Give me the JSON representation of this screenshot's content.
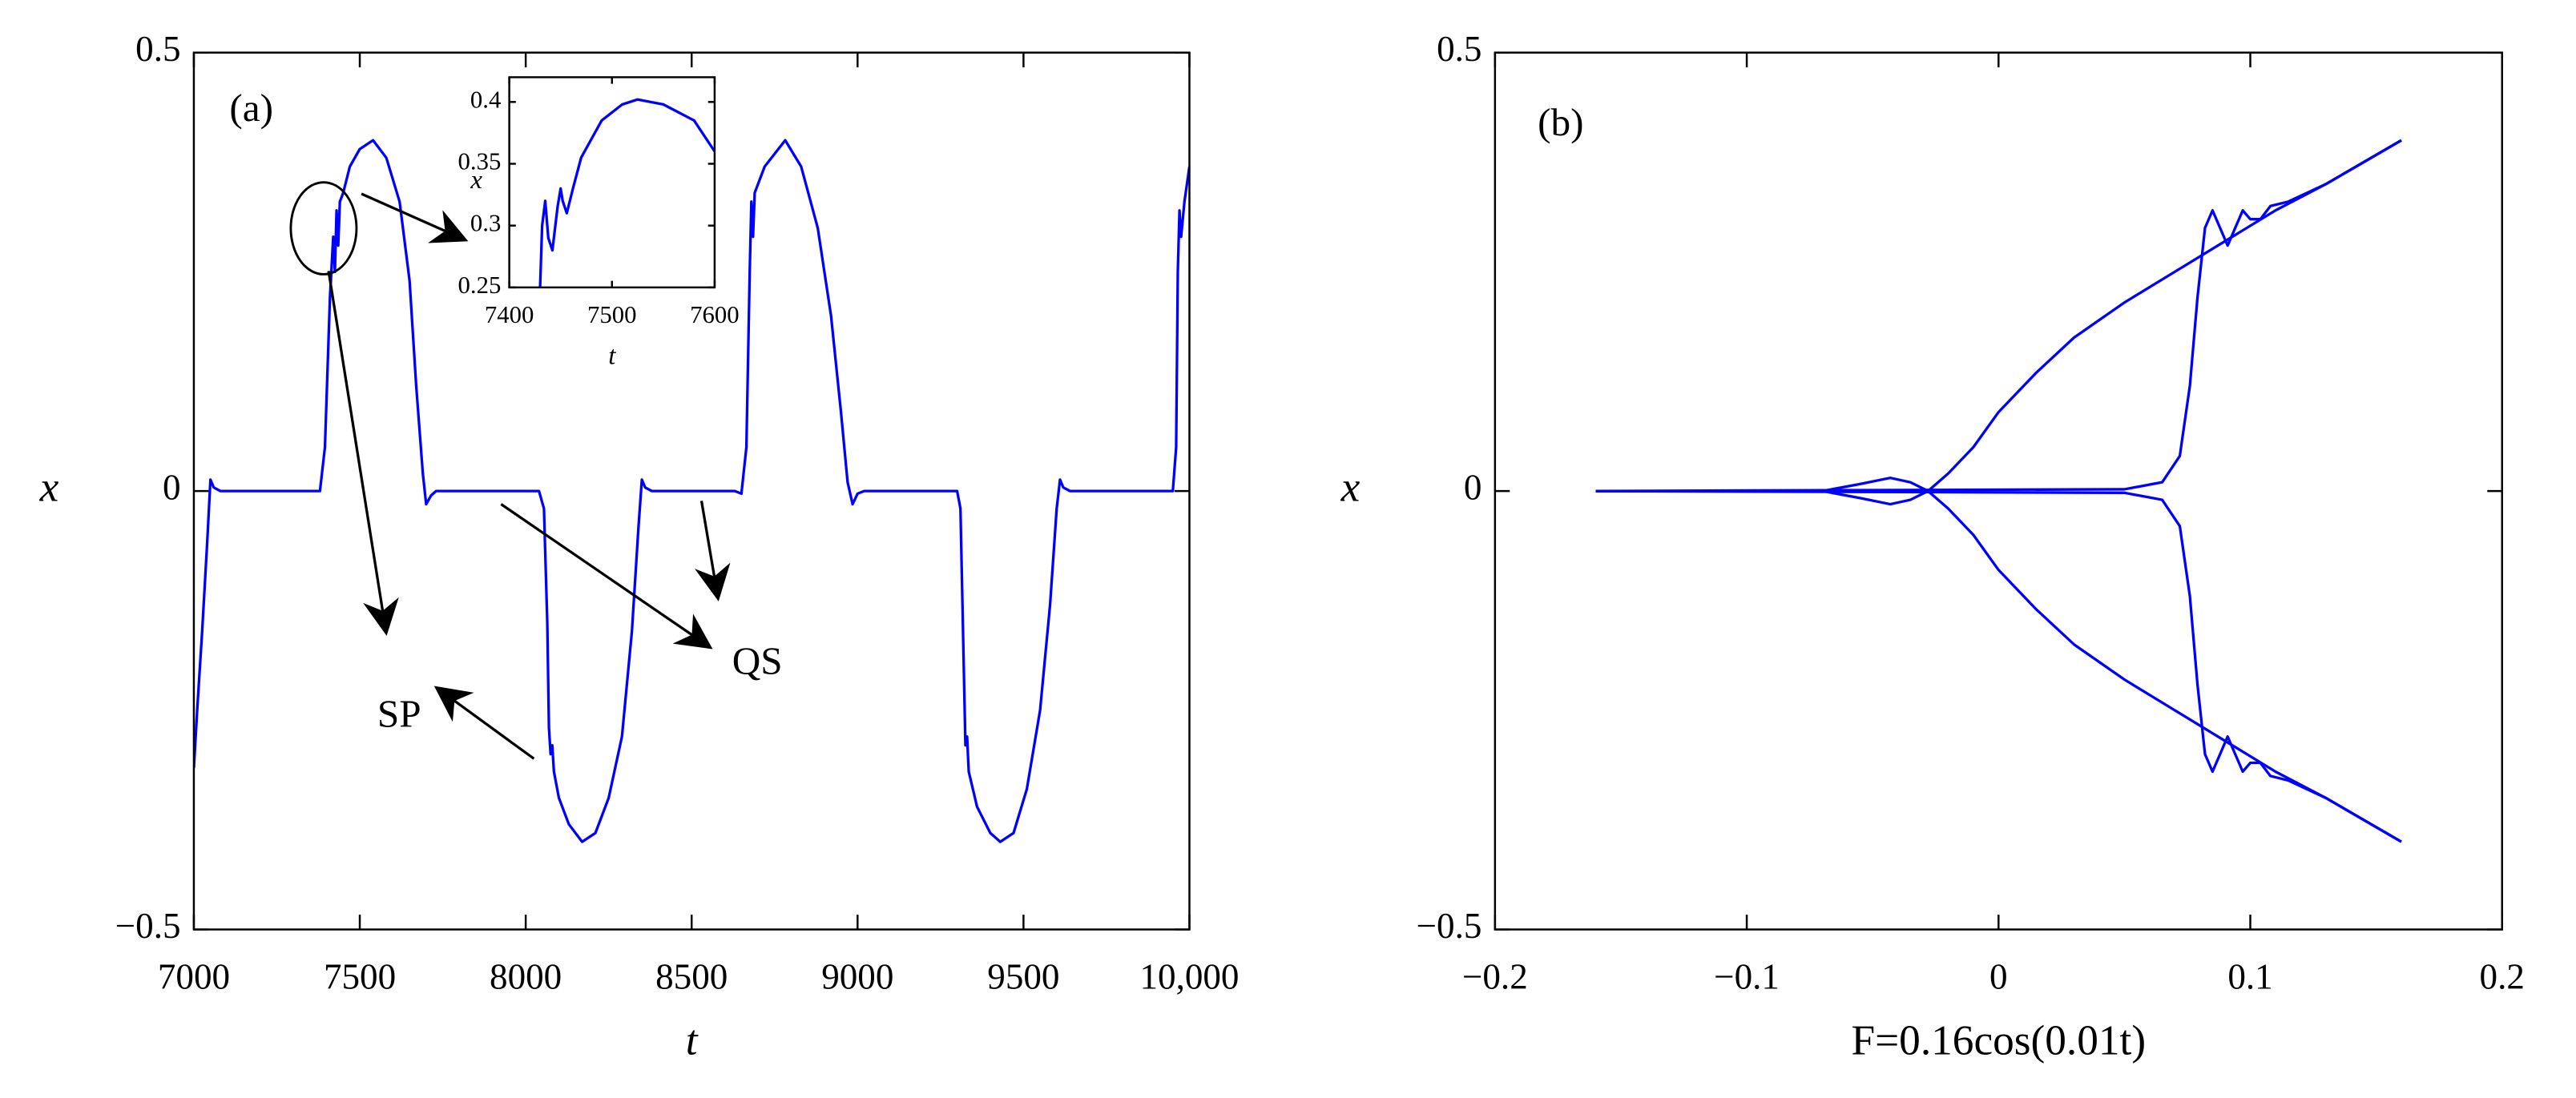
{
  "chart_data": [
    {
      "type": "line",
      "xlabel": "t",
      "ylabel": "x",
      "annotations": [
        "(a)",
        "SP",
        "QS"
      ],
      "xlim": [
        7000,
        10000
      ],
      "ylim": [
        -0.5,
        0.5
      ],
      "xticks": [
        7000,
        7500,
        8000,
        8500,
        9000,
        9500,
        {
          "value": 10000,
          "label": "10,000"
        }
      ],
      "yticks": [
        {
          "value": -0.5,
          "label": "−0.5"
        },
        0,
        0.5
      ],
      "x": [
        7000,
        7010,
        7025,
        7040,
        7050,
        7060,
        7080,
        7380,
        7395,
        7410,
        7420,
        7425,
        7430,
        7435,
        7440,
        7450,
        7470,
        7500,
        7540,
        7580,
        7620,
        7650,
        7670,
        7690,
        7700,
        7715,
        7730,
        8040,
        8055,
        8065,
        8070,
        8075,
        8080,
        8085,
        8100,
        8130,
        8170,
        8210,
        8250,
        8290,
        8320,
        8340,
        8350,
        8360,
        8380,
        8630,
        8650,
        8665,
        8675,
        8680,
        8685,
        8690,
        8720,
        8782,
        8830,
        8880,
        8920,
        8950,
        8970,
        8985,
        9000,
        9020,
        9300,
        9310,
        9320,
        9325,
        9330,
        9335,
        9360,
        9400,
        9430,
        9470,
        9510,
        9550,
        9580,
        9600,
        9610,
        9620,
        9640,
        9950,
        9960,
        9965,
        9970,
        9975,
        9985,
        10000
      ],
      "series": [
        {
          "color": "#0000ff",
          "values": [
            -0.316,
            -0.25,
            -0.16,
            -0.06,
            0.013,
            0.004,
            0,
            0,
            0.05,
            0.22,
            0.29,
            0.25,
            0.32,
            0.28,
            0.33,
            0.34,
            0.37,
            0.39,
            0.4,
            0.38,
            0.33,
            0.24,
            0.12,
            0.02,
            -0.015,
            -0.005,
            0,
            0,
            -0.02,
            -0.15,
            -0.27,
            -0.3,
            -0.29,
            -0.32,
            -0.35,
            -0.38,
            -0.4,
            -0.39,
            -0.35,
            -0.28,
            -0.16,
            -0.04,
            0.013,
            0.004,
            0,
            0,
            -0.003,
            0.05,
            0.25,
            0.33,
            0.29,
            0.34,
            0.37,
            0.4,
            0.37,
            0.3,
            0.2,
            0.09,
            0.01,
            -0.015,
            -0.003,
            0,
            0,
            -0.02,
            -0.2,
            -0.29,
            -0.28,
            -0.32,
            -0.36,
            -0.39,
            -0.4,
            -0.39,
            -0.34,
            -0.25,
            -0.13,
            -0.02,
            0.013,
            0.004,
            0,
            0,
            0.05,
            0.25,
            0.32,
            0.29,
            0.33,
            0.37
          ]
        }
      ]
    },
    {
      "type": "line",
      "xlabel": "F=0.16cos(0.01t)",
      "ylabel": "x",
      "annotations": [
        "(b)"
      ],
      "xlim": [
        -0.2,
        0.2
      ],
      "ylim": [
        -0.5,
        0.5
      ],
      "xticks": [
        {
          "value": -0.2,
          "label": "−0.2"
        },
        {
          "value": -0.1,
          "label": "−0.1"
        },
        0,
        0.1,
        0.2
      ],
      "yticks": [
        {
          "value": -0.5,
          "label": "−0.5"
        },
        0,
        0.5
      ],
      "series": [
        {
          "color": "#0000ff",
          "x": [
            -0.16,
            -0.07,
            -0.055,
            -0.043,
            -0.035,
            -0.028,
            -0.02,
            -0.01,
            0,
            0.015,
            0.03,
            0.05,
            0.07,
            0.09,
            0.11,
            0.13,
            0.16
          ],
          "values": [
            0,
            0,
            -0.008,
            -0.015,
            -0.01,
            0,
            0.02,
            0.05,
            0.09,
            0.135,
            0.175,
            0.215,
            0.25,
            0.285,
            0.32,
            0.35,
            0.4
          ]
        },
        {
          "color": "#0000ff",
          "x": [
            -0.16,
            -0.07,
            -0.055,
            -0.043,
            -0.035,
            -0.028,
            -0.02,
            -0.01,
            0,
            0.015,
            0.03,
            0.05,
            0.07,
            0.09,
            0.11,
            0.13,
            0.16
          ],
          "values": [
            0,
            0,
            0.008,
            0.015,
            0.01,
            0,
            -0.02,
            -0.05,
            -0.09,
            -0.135,
            -0.175,
            -0.215,
            -0.25,
            -0.285,
            -0.32,
            -0.35,
            -0.4
          ]
        },
        {
          "color": "#0000ff",
          "x": [
            -0.16,
            0.05,
            0.065,
            0.072,
            0.076,
            0.079,
            0.082,
            0.085,
            0.088,
            0.091,
            0.094,
            0.097,
            0.1,
            0.104,
            0.108,
            0.115,
            0.13,
            0.16
          ],
          "values": [
            0,
            0.002,
            0.01,
            0.04,
            0.12,
            0.22,
            0.3,
            0.32,
            0.3,
            0.28,
            0.3,
            0.32,
            0.31,
            0.31,
            0.325,
            0.33,
            0.35,
            0.4
          ]
        },
        {
          "color": "#0000ff",
          "x": [
            -0.16,
            0.05,
            0.065,
            0.072,
            0.076,
            0.079,
            0.082,
            0.085,
            0.088,
            0.091,
            0.094,
            0.097,
            0.1,
            0.104,
            0.108,
            0.115,
            0.13,
            0.16
          ],
          "values": [
            0,
            -0.002,
            -0.01,
            -0.04,
            -0.12,
            -0.22,
            -0.3,
            -0.32,
            -0.3,
            -0.28,
            -0.3,
            -0.32,
            -0.31,
            -0.31,
            -0.325,
            -0.33,
            -0.35,
            -0.4
          ]
        }
      ]
    },
    {
      "type": "line",
      "xlabel": "t",
      "ylabel": "x",
      "xlim": [
        7400,
        7600
      ],
      "ylim": [
        0.25,
        0.42
      ],
      "xticks": [
        7400,
        7500,
        7600
      ],
      "yticks": [
        0.25,
        0.3,
        0.35,
        0.4
      ],
      "x": [
        7430,
        7432,
        7435,
        7438,
        7442,
        7447,
        7450,
        7452,
        7456,
        7462,
        7470,
        7480,
        7490,
        7510,
        7525,
        7550,
        7580,
        7600
      ],
      "series": [
        {
          "color": "#0000ff",
          "values": [
            0.25,
            0.3,
            0.32,
            0.29,
            0.28,
            0.315,
            0.33,
            0.32,
            0.31,
            0.33,
            0.355,
            0.37,
            0.385,
            0.398,
            0.402,
            0.398,
            0.385,
            0.36
          ]
        }
      ]
    }
  ]
}
